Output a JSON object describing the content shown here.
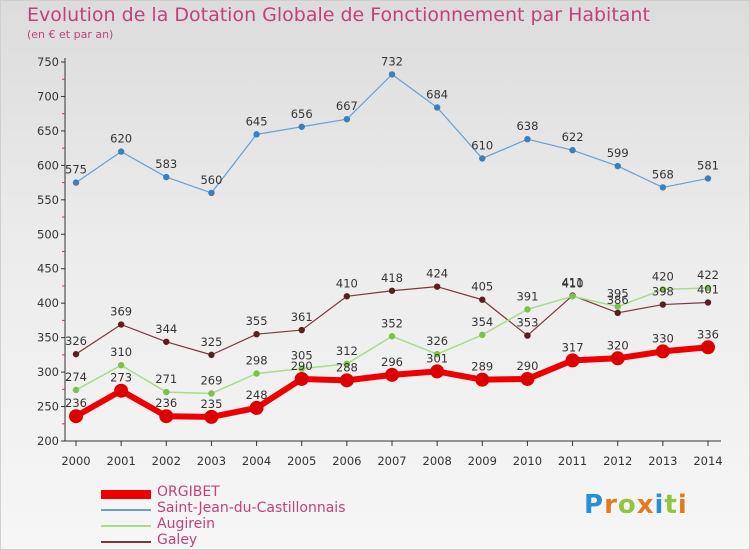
{
  "title": "Evolution de la Dotation Globale de Fonctionnement par Habitant",
  "subtitle": "(en € et par an)",
  "logo": {
    "text": "Proxiti",
    "letters": [
      {
        "ch": "P",
        "color": "#2a8fd8"
      },
      {
        "ch": "r",
        "color": "#e8781e"
      },
      {
        "ch": "o",
        "color": "#8fc640"
      },
      {
        "ch": "x",
        "color": "#e8781e"
      },
      {
        "ch": "i",
        "color": "#2a8fd8"
      },
      {
        "ch": "t",
        "color": "#8fc640"
      },
      {
        "ch": "i",
        "color": "#e8781e"
      }
    ]
  },
  "chart_data": {
    "type": "line",
    "title": "Evolution de la Dotation Globale de Fonctionnement par Habitant",
    "subtitle": "(en € et par an)",
    "x": [
      "2000",
      "2001",
      "2002",
      "2003",
      "2004",
      "2005",
      "2006",
      "2007",
      "2008",
      "2009",
      "2010",
      "2011",
      "2012",
      "2013",
      "2014"
    ],
    "ylim": [
      200,
      750
    ],
    "yticks": [
      200,
      250,
      300,
      350,
      400,
      450,
      500,
      550,
      600,
      650,
      700,
      750
    ],
    "grid": false,
    "legend_position": "bottom-left",
    "series": [
      {
        "name": "Saint-Jean-du-Castillonnais",
        "color": "#6a9fd0",
        "marker": "#3a7fc0",
        "width": 1.2,
        "values": [
          575,
          620,
          583,
          560,
          645,
          656,
          667,
          732,
          684,
          610,
          638,
          622,
          599,
          568,
          581
        ]
      },
      {
        "name": "Galey",
        "color": "#7a3a3a",
        "marker": "#5a1f1f",
        "width": 1.2,
        "values": [
          326,
          369,
          344,
          325,
          355,
          361,
          410,
          418,
          424,
          405,
          353,
          411,
          386,
          398,
          401
        ]
      },
      {
        "name": "Augirein",
        "color": "#a8dc8a",
        "marker": "#7cc24a",
        "width": 1.5,
        "values": [
          274,
          310,
          271,
          269,
          298,
          305,
          312,
          352,
          326,
          354,
          391,
          410,
          395,
          420,
          422
        ]
      },
      {
        "name": "ORGIBET",
        "color": "#ee0000",
        "marker": "#dd0000",
        "width": 6,
        "values": [
          236,
          273,
          236,
          235,
          248,
          290,
          288,
          296,
          301,
          289,
          290,
          317,
          320,
          330,
          336
        ]
      }
    ],
    "legend_order": [
      "ORGIBET",
      "Saint-Jean-du-Castillonnais",
      "Augirein",
      "Galey"
    ]
  }
}
